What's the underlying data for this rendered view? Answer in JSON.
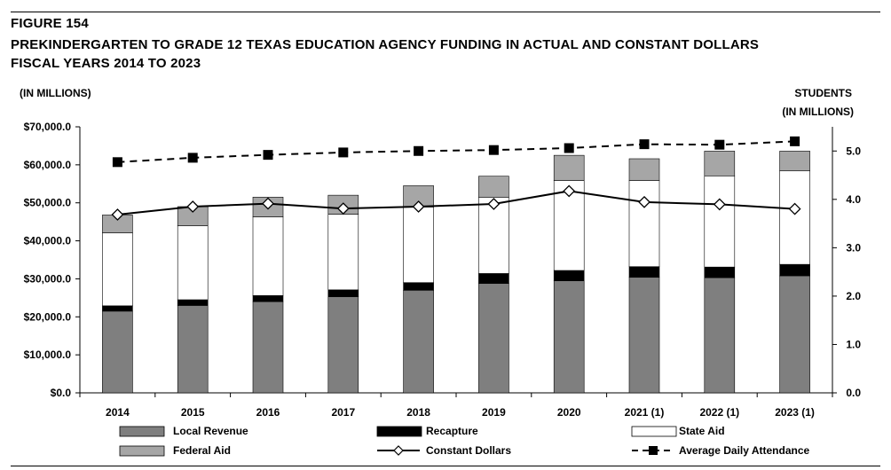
{
  "figure": {
    "number": "FIGURE 154",
    "title_line1": "PREKINDERGARTEN TO GRADE 12 TEXAS EDUCATION AGENCY FUNDING IN ACTUAL AND CONSTANT DOLLARS",
    "title_line2": "FISCAL YEARS 2014 TO 2023"
  },
  "chart_data": {
    "type": "bar",
    "stacked": true,
    "categories": [
      "2014",
      "2015",
      "2016",
      "2017",
      "2018",
      "2019",
      "2020",
      "2021 (1)",
      "2022 (1)",
      "2023 (1)"
    ],
    "series": [
      {
        "name": "Local Revenue",
        "axis": "left",
        "color": "#7f7f7f",
        "values": [
          21500,
          23000,
          24000,
          25300,
          27000,
          28800,
          29500,
          30400,
          30300,
          30800
        ]
      },
      {
        "name": "Recapture",
        "axis": "left",
        "color": "#000000",
        "values": [
          1400,
          1500,
          1600,
          1800,
          2000,
          2600,
          2700,
          2800,
          2800,
          3000
        ]
      },
      {
        "name": "State Aid",
        "axis": "left",
        "color": "#ffffff",
        "values": [
          19200,
          19500,
          20700,
          19900,
          19900,
          20000,
          23700,
          22700,
          24000,
          24600
        ]
      },
      {
        "name": "Federal Aid",
        "axis": "left",
        "color": "#a6a6a6",
        "values": [
          4700,
          5000,
          5200,
          5000,
          5600,
          5600,
          6600,
          5700,
          6500,
          5200
        ]
      }
    ],
    "lines": [
      {
        "name": "Constant Dollars",
        "axis": "left",
        "marker": "diamond-open",
        "style": "solid",
        "values": [
          46900,
          49000,
          49800,
          48500,
          49000,
          49700,
          53100,
          50200,
          49600,
          48400
        ]
      },
      {
        "name": "Average Daily Attendance",
        "axis": "right",
        "marker": "square-filled",
        "style": "dashed",
        "values": [
          4.77,
          4.86,
          4.92,
          4.97,
          5.0,
          5.02,
          5.06,
          5.14,
          5.13,
          5.2
        ]
      }
    ],
    "left_axis": {
      "label": "(IN MILLIONS)",
      "min": 0,
      "max": 70000,
      "step": 10000,
      "ticks": [
        "$0.0",
        "$10,000.0",
        "$20,000.0",
        "$30,000.0",
        "$40,000.0",
        "$50,000.0",
        "$60,000.0",
        "$70,000.0"
      ]
    },
    "right_axis": {
      "label_line1": "STUDENTS",
      "label_line2": "(IN MILLIONS)",
      "min": 0,
      "max": 5.5,
      "step": 1,
      "ticks": [
        "0.0",
        "1.0",
        "2.0",
        "3.0",
        "4.0",
        "5.0"
      ]
    },
    "grid": false,
    "legend": {
      "placement": "bottom",
      "items": [
        {
          "label": "Local Revenue",
          "kind": "box",
          "color": "#7f7f7f"
        },
        {
          "label": "Recapture",
          "kind": "box",
          "color": "#000000"
        },
        {
          "label": "State Aid",
          "kind": "box",
          "color": "#ffffff"
        },
        {
          "label": "Federal Aid",
          "kind": "box",
          "color": "#a6a6a6"
        },
        {
          "label": "Constant Dollars",
          "kind": "line-diamond"
        },
        {
          "label": "Average Daily Attendance",
          "kind": "dashed-square"
        }
      ]
    }
  }
}
